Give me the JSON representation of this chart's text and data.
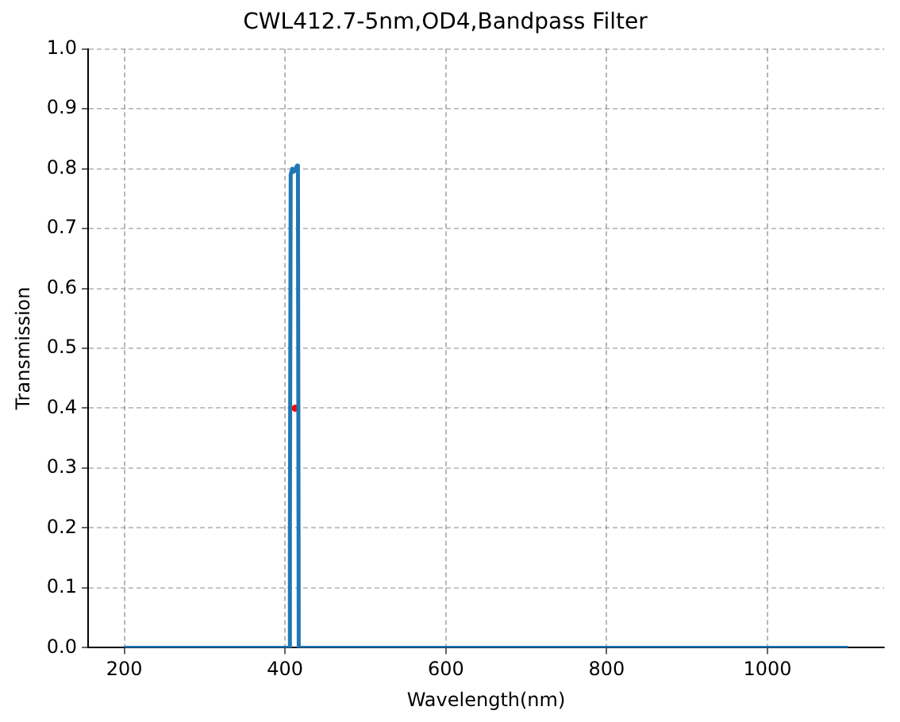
{
  "chart_data": {
    "type": "line",
    "title": "CWL412.7-5nm,OD4,Bandpass Filter",
    "xlabel": "Wavelength(nm)",
    "ylabel": "Transmission",
    "x": [
      200,
      405,
      406,
      407,
      409,
      411,
      413,
      415,
      416,
      417,
      1100
    ],
    "series": [
      {
        "color": "#1f77b4",
        "marker": "none",
        "values": [
          0,
          0,
          0.2,
          0.79,
          0.8,
          0.795,
          0.8,
          0.805,
          0.8,
          0,
          0
        ]
      },
      {
        "type": "scatter",
        "marker": "circle",
        "color": "#ff0000",
        "x": [
          412.7
        ],
        "values": [
          0.4
        ]
      }
    ],
    "xlim": [
      155,
      1145
    ],
    "xticks": [
      200,
      400,
      600,
      800,
      1000
    ],
    "ylim": [
      0,
      1
    ],
    "yticks": [
      {
        "value": 0,
        "label": "0.0"
      },
      0.1,
      0.2,
      0.3,
      0.4,
      0.5,
      0.6,
      0.7,
      0.8,
      0.9,
      {
        "value": 1,
        "label": "1.0"
      }
    ],
    "grid": true,
    "line_style": "solid"
  }
}
